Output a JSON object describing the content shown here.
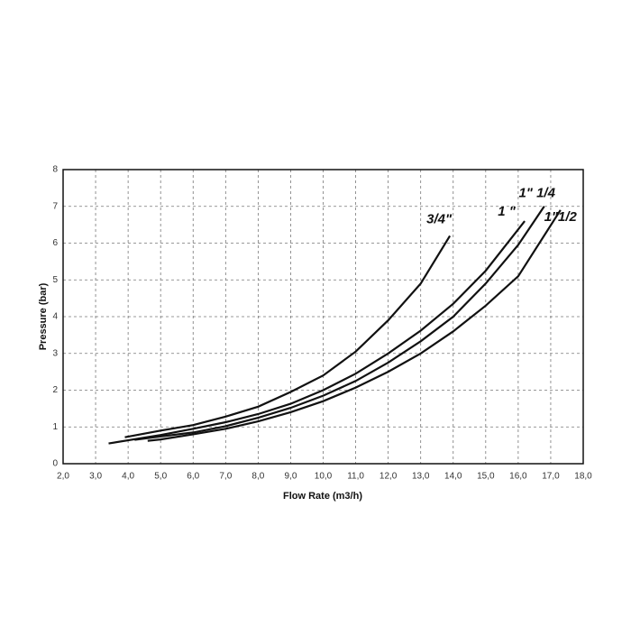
{
  "chart_data": {
    "type": "line",
    "x_label": "Flow Rate (m3/h)",
    "y_label": "Pressure (bar)",
    "xlim": [
      2,
      18
    ],
    "ylim": [
      0,
      8
    ],
    "xticks": [
      {
        "value": 2,
        "label": "2,0"
      },
      {
        "value": 3,
        "label": "3,0"
      },
      {
        "value": 4,
        "label": "4,0"
      },
      {
        "value": 5,
        "label": "5,0"
      },
      {
        "value": 6,
        "label": "6,0"
      },
      {
        "value": 7,
        "label": "7,0"
      },
      {
        "value": 8,
        "label": "8,0"
      },
      {
        "value": 9,
        "label": "9,0"
      },
      {
        "value": 10,
        "label": "10,0"
      },
      {
        "value": 11,
        "label": "11,0"
      },
      {
        "value": 12,
        "label": "12,0"
      },
      {
        "value": 13,
        "label": "13,0"
      },
      {
        "value": 14,
        "label": "14,0"
      },
      {
        "value": 15,
        "label": "15,0"
      },
      {
        "value": 16,
        "label": "16,0"
      },
      {
        "value": 17,
        "label": "17,0"
      },
      {
        "value": 18,
        "label": "18,0"
      }
    ],
    "yticks": [
      0,
      1,
      2,
      3,
      4,
      5,
      6,
      7,
      8
    ],
    "grid": true,
    "series": [
      {
        "name": "3/4\"",
        "color": "#111111",
        "x": [
          3.9,
          5,
          6,
          7,
          8,
          9,
          10,
          11,
          12,
          13,
          13.9
        ],
        "values": [
          0.72,
          0.9,
          1.05,
          1.28,
          1.55,
          1.95,
          2.4,
          3.05,
          3.9,
          4.9,
          6.2
        ]
      },
      {
        "name": "1 \"",
        "color": "#111111",
        "x": [
          3.4,
          5,
          6,
          7,
          8,
          9,
          10,
          11,
          12,
          13,
          14,
          15,
          16.2
        ],
        "values": [
          0.55,
          0.78,
          0.95,
          1.13,
          1.35,
          1.63,
          2.0,
          2.45,
          3.0,
          3.62,
          4.35,
          5.25,
          6.6
        ]
      },
      {
        "name": "1\" 1/4",
        "color": "#111111",
        "x": [
          4.2,
          5,
          6,
          7,
          8,
          9,
          10,
          11,
          12,
          13,
          14,
          15,
          16,
          16.8
        ],
        "values": [
          0.65,
          0.74,
          0.85,
          1.02,
          1.25,
          1.52,
          1.85,
          2.25,
          2.75,
          3.33,
          4.0,
          4.9,
          5.95,
          7.0
        ]
      },
      {
        "name": "1\"1/2",
        "color": "#111111",
        "x": [
          4.6,
          5,
          6,
          7,
          8,
          9,
          10,
          11,
          12,
          13,
          14,
          15,
          16,
          17.3
        ],
        "values": [
          0.62,
          0.66,
          0.8,
          0.95,
          1.15,
          1.4,
          1.7,
          2.07,
          2.5,
          3.0,
          3.6,
          4.3,
          5.1,
          6.9
        ]
      }
    ]
  }
}
